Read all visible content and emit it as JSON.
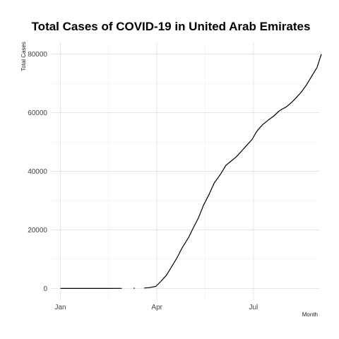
{
  "chart_data": {
    "type": "line",
    "title": "Total Cases of COVID-19 in United Arab Emirates",
    "xlabel": "Month",
    "ylabel": "Total Cases",
    "x_tick_labels": [
      "Jan",
      "Apr",
      "Jul"
    ],
    "x_ticks": [
      "2020-01-01",
      "2020-04-01",
      "2020-07-01"
    ],
    "y_ticks": [
      0,
      20000,
      40000,
      60000,
      80000
    ],
    "y_tick_labels": [
      "0",
      "20000",
      "40000",
      "60000",
      "80000"
    ],
    "xlim": [
      "2019-12-23",
      "2020-09-01"
    ],
    "ylim": [
      -4000,
      84000
    ],
    "grid": true,
    "legend": "none",
    "series_color": "#000000",
    "segments": [
      {
        "x": [
          "2020-01-01",
          "2020-01-29",
          "2020-02-15",
          "2020-02-28"
        ],
        "y": [
          0,
          4,
          8,
          19
        ]
      },
      {
        "x": [
          "2020-03-10",
          "2020-03-11"
        ],
        "y": [
          74,
          74
        ]
      },
      {
        "x": [
          "2020-03-20",
          "2020-03-25",
          "2020-03-31",
          "2020-04-05",
          "2020-04-10",
          "2020-04-15",
          "2020-04-20",
          "2020-04-25",
          "2020-05-01",
          "2020-05-05",
          "2020-05-10",
          "2020-05-15",
          "2020-05-20",
          "2020-05-25",
          "2020-05-31",
          "2020-06-05",
          "2020-06-10",
          "2020-06-15",
          "2020-06-20",
          "2020-06-25",
          "2020-06-30",
          "2020-07-03",
          "2020-07-06",
          "2020-07-10",
          "2020-07-15",
          "2020-07-20",
          "2020-07-25",
          "2020-07-27",
          "2020-08-01",
          "2020-08-06",
          "2020-08-10",
          "2020-08-15",
          "2020-08-20",
          "2020-08-25",
          "2020-08-30"
        ],
        "y": [
          140,
          300,
          700,
          2500,
          4500,
          7500,
          10500,
          14000,
          17500,
          20500,
          24000,
          28500,
          32000,
          36000,
          39000,
          42000,
          43500,
          45000,
          47000,
          49000,
          51000,
          53000,
          54500,
          56000,
          57500,
          58800,
          60500,
          61000,
          62000,
          63500,
          65000,
          67000,
          69500,
          72500,
          75500
        ]
      },
      {
        "x": [
          "2020-08-30",
          "2020-09-03"
        ],
        "y": [
          75500,
          80000
        ]
      }
    ]
  }
}
